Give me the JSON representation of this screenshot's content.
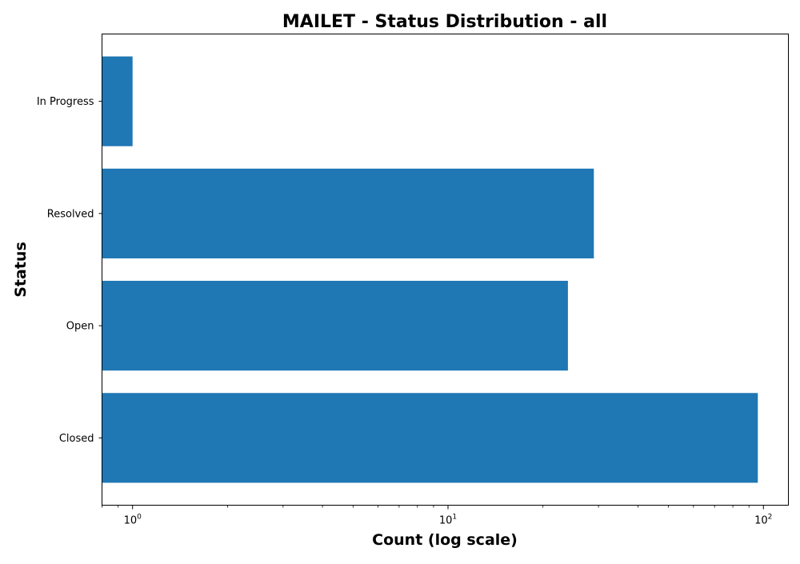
{
  "chart_data": {
    "type": "bar",
    "orientation": "horizontal",
    "title": "MAILET - Status Distribution - all",
    "xlabel": "Count (log scale)",
    "ylabel": "Status",
    "x_scale": "log",
    "xlim": [
      0.8,
      120
    ],
    "x_tick_labels": [
      "10^0",
      "10^1",
      "10^2"
    ],
    "categories": [
      "Closed",
      "Open",
      "Resolved",
      "In Progress"
    ],
    "values": [
      96,
      24,
      29,
      1
    ],
    "bar_color": "#1f77b4",
    "grid": false,
    "legend": "none"
  }
}
